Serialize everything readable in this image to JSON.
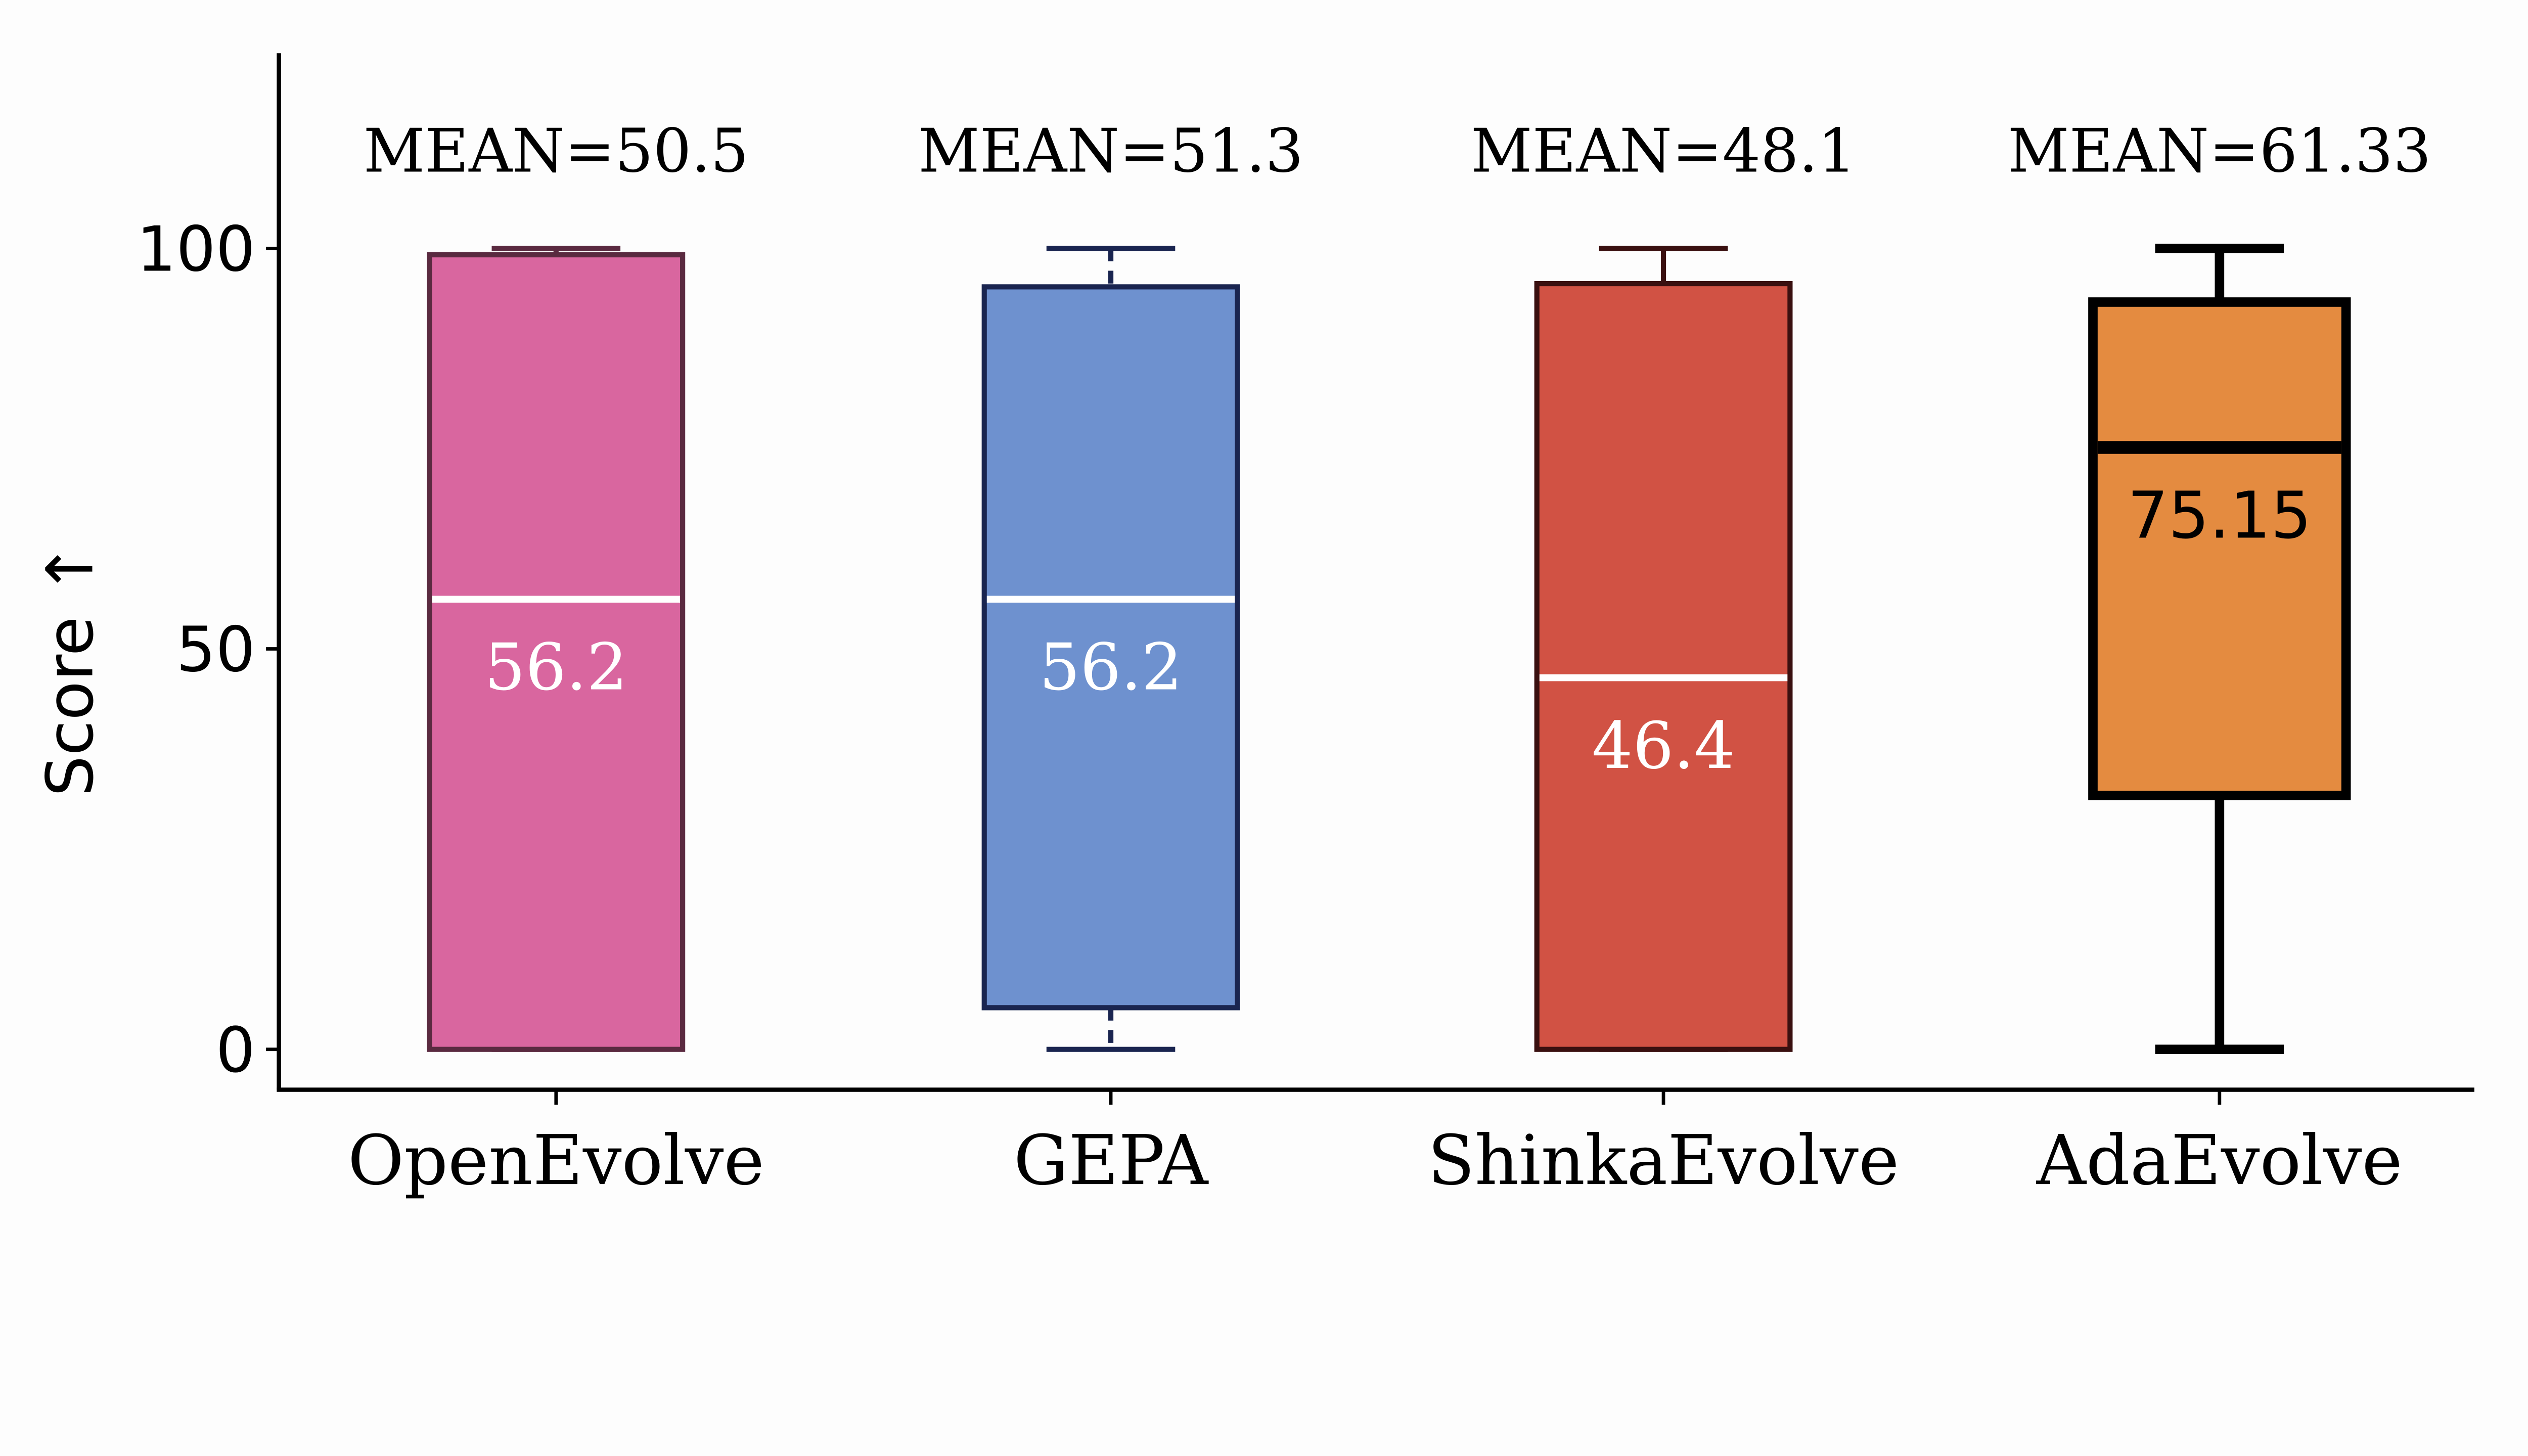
{
  "chart_data": {
    "type": "box",
    "ylabel": "Score ↑",
    "xlabel": "",
    "ylim": [
      0,
      122
    ],
    "yticks": [
      0,
      50,
      100
    ],
    "grid": false,
    "categories": [
      "OpenEvolve",
      "GEPA",
      "ShinkaEvolve",
      "AdaEvolve"
    ],
    "series": [
      {
        "category": "OpenEvolve",
        "min": 0,
        "q1": 0,
        "median": 56.2,
        "q3": 99.2,
        "max": 100,
        "mean_label": "MEAN=50.5",
        "median_label": "56.2",
        "fill": "#d9669f",
        "edge": "#5a2a40",
        "median_color": "#ffffff",
        "label_color": "#ffffff",
        "whisker_style": "solid"
      },
      {
        "category": "GEPA",
        "min": 0,
        "q1": 5.2,
        "median": 56.2,
        "q3": 95.2,
        "max": 100,
        "mean_label": "MEAN=51.3",
        "median_label": "56.2",
        "fill": "#6e91cf",
        "edge": "#1a2550",
        "median_color": "#ffffff",
        "label_color": "#ffffff",
        "whisker_style": "dashed"
      },
      {
        "category": "ShinkaEvolve",
        "min": 0,
        "q1": 0,
        "median": 46.4,
        "q3": 95.6,
        "max": 100,
        "mean_label": "MEAN=48.1",
        "median_label": "46.4",
        "fill": "#d15244",
        "edge": "#3a1010",
        "median_color": "#ffffff",
        "label_color": "#ffffff",
        "whisker_style": "solid"
      },
      {
        "category": "AdaEvolve",
        "min": 0,
        "q1": 31.7,
        "median": 75.15,
        "q3": 93.3,
        "max": 100,
        "mean_label": "MEAN=61.33",
        "median_label": "75.15",
        "fill": "#e48b40",
        "edge": "#000000",
        "median_color": "#000000",
        "label_color": "#000000",
        "whisker_style": "solid"
      }
    ]
  }
}
